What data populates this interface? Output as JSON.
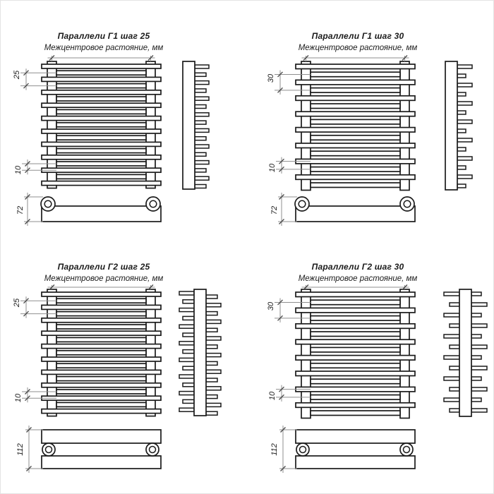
{
  "sheet": {
    "background": "#ffffff",
    "line_color": "#1b1b1b",
    "dim_color": "#8f8f8f",
    "tick_color": "#4a4a4a"
  },
  "panels": [
    {
      "id": "g1-step25",
      "title": "Параллели Г1 шаг 25",
      "subtitle": "Межцентровое растояние, мм",
      "variant": "Г1",
      "step_mm": "25",
      "dims": {
        "step": "25",
        "gap": "10",
        "depth": "72"
      },
      "front_tube_count": 19,
      "side_tooth_count": 16,
      "side_teeth": "right",
      "bottom_view": "single-rail"
    },
    {
      "id": "g1-step30",
      "title": "Параллели Г1 шаг 30",
      "subtitle": "Межцентровое растояние, мм",
      "variant": "Г1",
      "step_mm": "30",
      "dims": {
        "step": "30",
        "gap": "10",
        "depth": "72"
      },
      "front_tube_count": 16,
      "side_tooth_count": 14,
      "side_teeth": "right",
      "bottom_view": "single-rail"
    },
    {
      "id": "g2-step25",
      "title": "Параллели Г2 шаг 25",
      "subtitle": "Межцентровое растояние, мм",
      "variant": "Г2",
      "step_mm": "25",
      "dims": {
        "step": "25",
        "gap": "10",
        "depth": "112"
      },
      "front_tube_count": 19,
      "side_tooth_count": 15,
      "side_teeth": "both",
      "bottom_view": "double-rail"
    },
    {
      "id": "g2-step30",
      "title": "Параллели Г2 шаг 30",
      "subtitle": "Межцентровое растояние, мм",
      "variant": "Г2",
      "step_mm": "30",
      "dims": {
        "step": "30",
        "gap": "10",
        "depth": "112"
      },
      "front_tube_count": 16,
      "side_tooth_count": 12,
      "side_teeth": "both",
      "bottom_view": "double-rail"
    }
  ]
}
